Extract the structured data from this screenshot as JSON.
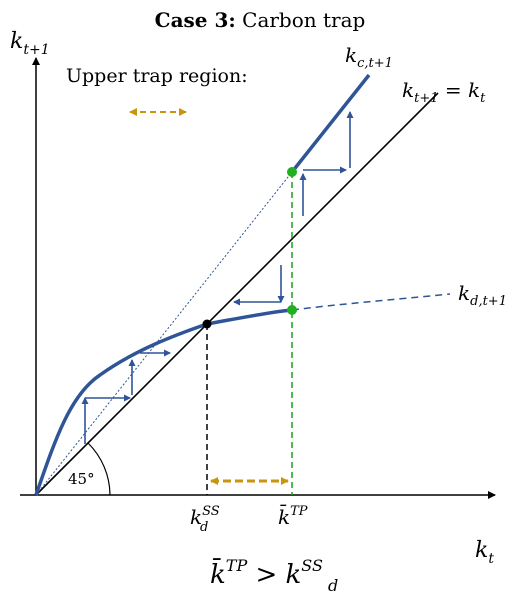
{
  "title": {
    "bold": "Case 3:",
    "rest": " Carbon trap"
  },
  "axes": {
    "y_label": {
      "base": "k",
      "sub": "t+1"
    },
    "x_label": {
      "base": "k",
      "sub": "t"
    }
  },
  "legend": {
    "text": "Upper trap region:"
  },
  "curves": {
    "c_label": {
      "base": "k",
      "sub": "c,t+1"
    },
    "diagonal_label": {
      "lhs_base": "k",
      "lhs_sub": "t+1",
      "eq": " = ",
      "rhs_base": "k",
      "rhs_sub": "t"
    },
    "d_label": {
      "base": "k",
      "sub": "d,t+1"
    }
  },
  "angle_label": "45°",
  "ticks": {
    "kss": {
      "base": "k",
      "sub": "d",
      "sup": "SS"
    },
    "ktp": {
      "base": "k̄",
      "sup": "TP"
    }
  },
  "condition": {
    "left_base": "k̄",
    "left_sup": "TP",
    "op": " > ",
    "right_base": "k",
    "right_sub": "d",
    "right_sup": "SS"
  },
  "colors": {
    "curve": "#2f5597",
    "arrow": "#2f5597",
    "guide_green": "#1aa31a",
    "dot_green": "#22b022",
    "gold": "#c8960c",
    "black": "#000000"
  }
}
